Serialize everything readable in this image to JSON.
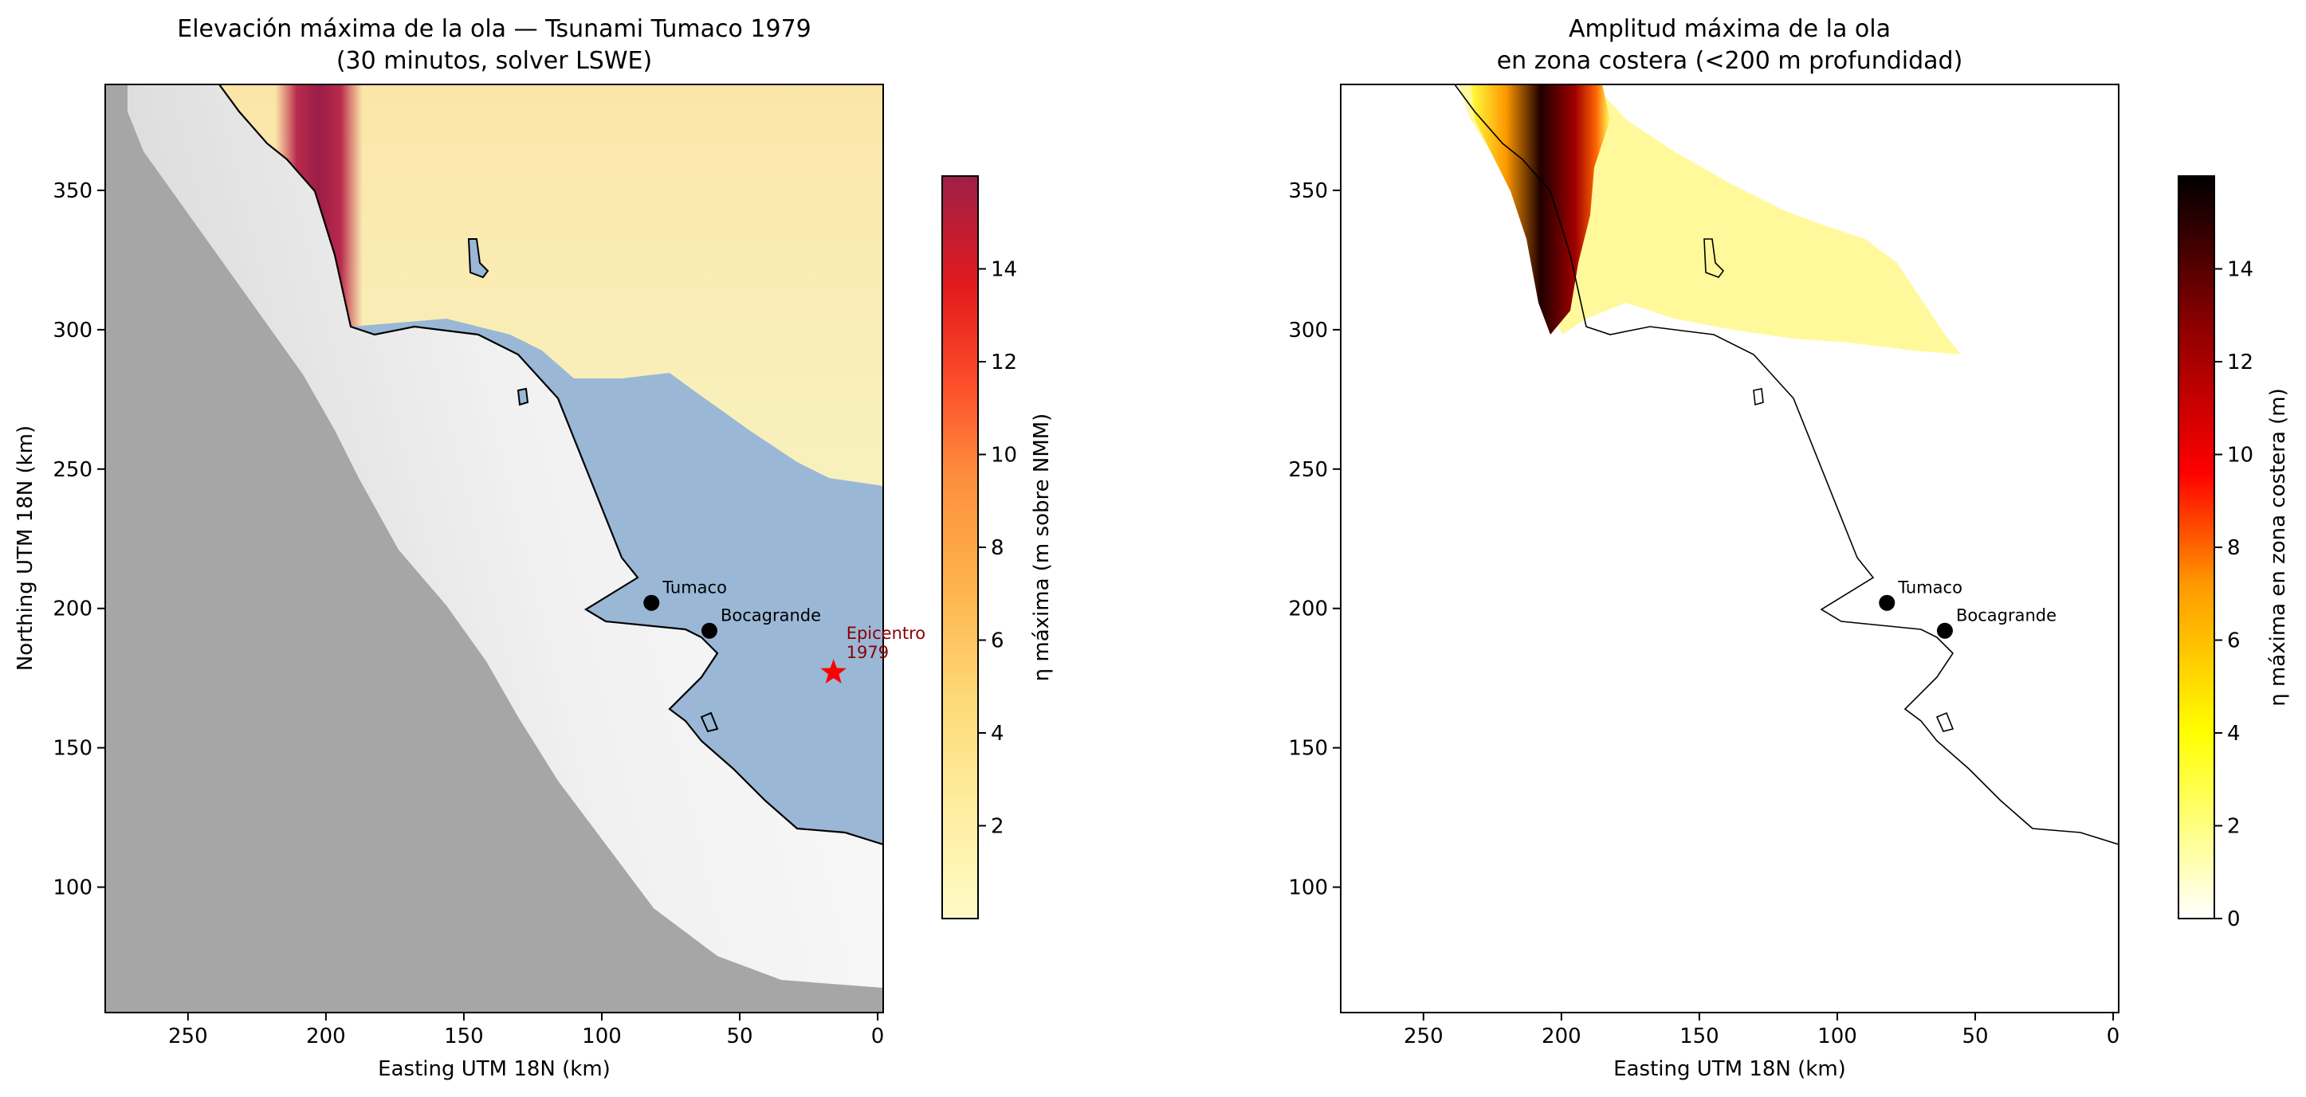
{
  "left_map": {
    "title_line1": "Elevación máxima de la ola — Tsunami Tumaco 1979",
    "title_line2": "(30 minutos, solver LSWE)",
    "xlabel": "Easting UTM 18N (km)",
    "ylabel": "Northing UTM 18N (km)",
    "x_range": [
      280,
      -2
    ],
    "y_range": [
      55,
      388
    ],
    "x_ticks": [
      "250",
      "200",
      "150",
      "100",
      "50",
      "0"
    ],
    "y_ticks": [
      "350",
      "300",
      "250",
      "200",
      "150",
      "100"
    ],
    "colorbar": {
      "label": "η máxima (m sobre NMM)",
      "colormap": "YlOrRd",
      "range": [
        0,
        16
      ],
      "ticks": [
        "2",
        "4",
        "6",
        "8",
        "10",
        "12",
        "14"
      ]
    },
    "places": [
      {
        "name": "Tumaco",
        "x": 82,
        "y": 202
      },
      {
        "name": "Bocagrande",
        "x": 61,
        "y": 192
      }
    ],
    "epicenter": {
      "line1": "Epicentro",
      "line2": "1979",
      "x": 16,
      "y": 177,
      "color": "#ff0000"
    },
    "colors": {
      "land": "#a6a6a6",
      "shallow_water": "#9ab7d6",
      "coast": "#000000"
    }
  },
  "right_map": {
    "title_line1": "Amplitud máxima de la ola",
    "title_line2": "en zona costera (<200 m profundidad)",
    "xlabel": "Easting UTM 18N (km)",
    "x_range": [
      280,
      -2
    ],
    "y_range": [
      55,
      388
    ],
    "x_ticks": [
      "250",
      "200",
      "150",
      "100",
      "50",
      "0"
    ],
    "y_ticks": [
      "350",
      "300",
      "250",
      "200",
      "150",
      "100"
    ],
    "colorbar": {
      "label": "η máxima en zona costera (m)",
      "colormap": "hot_r",
      "range": [
        0,
        16
      ],
      "ticks": [
        "0",
        "2",
        "4",
        "6",
        "8",
        "10",
        "12",
        "14"
      ]
    },
    "places": [
      {
        "name": "Tumaco",
        "x": 82,
        "y": 202
      },
      {
        "name": "Bocagrande",
        "x": 61,
        "y": 192
      }
    ]
  }
}
